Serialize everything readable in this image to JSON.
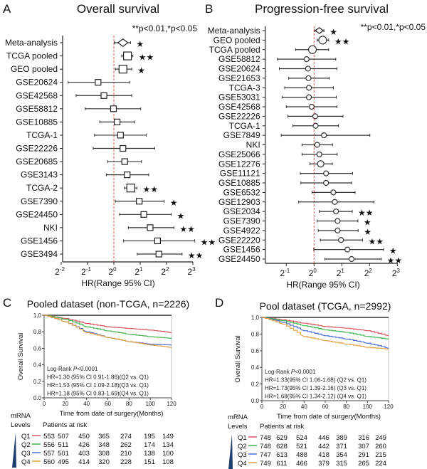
{
  "chart_data": [
    {
      "type": "forest",
      "panel": "A",
      "title": "Overall survival",
      "xlabel": "HR(Range 95% CI)",
      "x_scale": "log2",
      "x_ticks_log2": [
        -2,
        -1,
        0,
        1,
        2,
        3
      ],
      "reference_line_hr": 1,
      "annotation": "**p<0.01,*p<0.05",
      "rows": [
        {
          "label": "Meta-analysis",
          "hr": 1.27,
          "lo": 1.01,
          "hi": 1.55,
          "sig": "*",
          "marker": "diamond"
        },
        {
          "label": "TCGA pooled",
          "hr": 1.43,
          "lo": 1.23,
          "hi": 1.65,
          "sig": "**",
          "marker": "square"
        },
        {
          "label": "GEO pooled",
          "hr": 1.27,
          "lo": 1.04,
          "hi": 1.6,
          "sig": "*",
          "marker": "square"
        },
        {
          "label": "GSE20624",
          "hr": 0.66,
          "lo": 0.3,
          "hi": 1.51,
          "sig": "",
          "marker": "square"
        },
        {
          "label": "GSE42568",
          "hr": 0.77,
          "lo": 0.37,
          "hi": 1.6,
          "sig": "",
          "marker": "square"
        },
        {
          "label": "GSE58812",
          "hr": 0.99,
          "lo": 0.47,
          "hi": 2.03,
          "sig": "",
          "marker": "square"
        },
        {
          "label": "GSE10885",
          "hr": 1.09,
          "lo": 0.69,
          "hi": 1.73,
          "sig": "",
          "marker": "square"
        },
        {
          "label": "TCGA-1",
          "hr": 1.19,
          "lo": 0.6,
          "hi": 2.35,
          "sig": "",
          "marker": "square"
        },
        {
          "label": "GSE22226",
          "hr": 1.27,
          "lo": 0.58,
          "hi": 2.93,
          "sig": "",
          "marker": "square"
        },
        {
          "label": "GSE20685",
          "hr": 1.33,
          "lo": 0.85,
          "hi": 2.07,
          "sig": "",
          "marker": "square"
        },
        {
          "label": "GSE3143",
          "hr": 1.42,
          "lo": 0.82,
          "hi": 2.5,
          "sig": "",
          "marker": "square"
        },
        {
          "label": "TCGA-2",
          "hr": 1.56,
          "lo": 1.32,
          "hi": 1.84,
          "sig": "**",
          "marker": "square"
        },
        {
          "label": "GSE7390",
          "hr": 1.95,
          "lo": 1.04,
          "hi": 3.76,
          "sig": "*",
          "marker": "square"
        },
        {
          "label": "GSE24450",
          "hr": 2.2,
          "lo": 1.16,
          "hi": 4.53,
          "sig": "*",
          "marker": "square"
        },
        {
          "label": "NKI",
          "hr": 2.6,
          "lo": 1.46,
          "hi": 4.86,
          "sig": "**",
          "marker": "square"
        },
        {
          "label": "GSE1456",
          "hr": 3.16,
          "lo": 1.29,
          "hi": 8.4,
          "sig": "**",
          "marker": "square"
        },
        {
          "label": "GSE3494",
          "hr": 3.27,
          "lo": 1.85,
          "hi": 6.02,
          "sig": "**",
          "marker": "square"
        }
      ]
    },
    {
      "type": "forest",
      "panel": "B",
      "title": "Progression-free survival",
      "xlabel": "HR(Range 95% CI)",
      "x_scale": "log2",
      "x_ticks_log2": [
        -1,
        0,
        1,
        2,
        3
      ],
      "reference_line_hr": 1,
      "annotation": "**p<0.01,*p<0.05",
      "rows": [
        {
          "label": "Meta-analysis",
          "hr": 1.14,
          "lo": 1.02,
          "hi": 1.28,
          "sig": "*",
          "marker": "diamond"
        },
        {
          "label": "GEO pooled",
          "hr": 1.24,
          "lo": 1.08,
          "hi": 1.44,
          "sig": "**",
          "marker": "circle"
        },
        {
          "label": "TCGA pooled",
          "hr": 0.96,
          "lo": 0.63,
          "hi": 1.44,
          "sig": "",
          "marker": "circle"
        },
        {
          "label": "GSE58812",
          "hr": 0.83,
          "lo": 0.4,
          "hi": 1.72,
          "sig": "",
          "marker": "circle"
        },
        {
          "label": "GSE20624",
          "hr": 0.86,
          "lo": 0.42,
          "hi": 1.77,
          "sig": "",
          "marker": "circle"
        },
        {
          "label": "GSE21653",
          "hr": 0.87,
          "lo": 0.53,
          "hi": 1.46,
          "sig": "",
          "marker": "circle"
        },
        {
          "label": "TCGA-3",
          "hr": 0.88,
          "lo": 0.48,
          "hi": 1.62,
          "sig": "",
          "marker": "circle"
        },
        {
          "label": "GSE53031",
          "hr": 0.88,
          "lo": 0.45,
          "hi": 1.74,
          "sig": "",
          "marker": "circle"
        },
        {
          "label": "GSE42568",
          "hr": 0.94,
          "lo": 0.5,
          "hi": 1.77,
          "sig": "",
          "marker": "circle"
        },
        {
          "label": "GSE22226",
          "hr": 1.03,
          "lo": 0.52,
          "hi": 2.06,
          "sig": "",
          "marker": "circle"
        },
        {
          "label": "TCGA-1",
          "hr": 1.04,
          "lo": 0.59,
          "hi": 1.84,
          "sig": "",
          "marker": "circle"
        },
        {
          "label": "GSE7849",
          "hr": 1.28,
          "lo": 0.44,
          "hi": 4.03,
          "sig": "",
          "marker": "circle"
        },
        {
          "label": "NKI",
          "hr": 1.08,
          "lo": 0.74,
          "hi": 1.59,
          "sig": "",
          "marker": "circle"
        },
        {
          "label": "GSE25066",
          "hr": 1.14,
          "lo": 0.74,
          "hi": 1.78,
          "sig": "",
          "marker": "circle"
        },
        {
          "label": "GSE12276",
          "hr": 1.18,
          "lo": 0.9,
          "hi": 1.58,
          "sig": "",
          "marker": "circle"
        },
        {
          "label": "GSE11121",
          "hr": 1.35,
          "lo": 0.71,
          "hi": 2.62,
          "sig": "",
          "marker": "circle"
        },
        {
          "label": "GSE10885",
          "hr": 1.35,
          "lo": 0.72,
          "hi": 2.55,
          "sig": "",
          "marker": "circle"
        },
        {
          "label": "GSE6532",
          "hr": 1.62,
          "lo": 0.95,
          "hi": 2.79,
          "sig": "",
          "marker": "circle"
        },
        {
          "label": "GSE12903",
          "hr": 1.68,
          "lo": 0.68,
          "hi": 4.47,
          "sig": "",
          "marker": "circle"
        },
        {
          "label": "GSE2034",
          "hr": 1.73,
          "lo": 1.14,
          "hi": 2.6,
          "sig": "**",
          "marker": "circle"
        },
        {
          "label": "GSE7390",
          "hr": 1.8,
          "lo": 1.08,
          "hi": 2.99,
          "sig": "*",
          "marker": "circle"
        },
        {
          "label": "GSE4922",
          "hr": 1.8,
          "lo": 1.11,
          "hi": 3.01,
          "sig": "*",
          "marker": "circle"
        },
        {
          "label": "GSE22220",
          "hr": 1.96,
          "lo": 1.17,
          "hi": 3.36,
          "sig": "**",
          "marker": "circle"
        },
        {
          "label": "GSE1456",
          "hr": 2.3,
          "lo": 0.99,
          "hi": 5.66,
          "sig": "*",
          "marker": "circle"
        },
        {
          "label": "GSE24450",
          "hr": 2.55,
          "lo": 1.31,
          "hi": 5.35,
          "sig": "**",
          "marker": "circle"
        }
      ]
    },
    {
      "type": "line",
      "panel": "C",
      "title": "Pooled dataset (non-TCGA, n=2226)",
      "xlabel": "Time from date of surgery(Months)",
      "ylabel": "Overall Survival",
      "xlim": [
        0,
        120
      ],
      "ylim": [
        0,
        1
      ],
      "x_ticks": [
        0,
        20,
        40,
        60,
        80,
        100,
        120
      ],
      "y_ticks": [
        "0.0",
        "0.2",
        "0.4",
        "0.6",
        "0.8",
        "1.0"
      ],
      "annotations": [
        "Log-Rank P<0.0001",
        "HR=1.30 (95% CI 0.91-1.86)(Q2 vs. Q1)",
        "HR=1.53 (95% CI 1.09-2.18)(Q3 vs. Q1)",
        "HR=1.18 (95% CI 0.83-1.69)(Q4 vs. Q1)"
      ],
      "x": [
        0,
        20,
        40,
        60,
        80,
        100,
        120
      ],
      "series": [
        {
          "name": "Q1",
          "color": "#d9555c",
          "values": [
            1.0,
            0.96,
            0.9,
            0.86,
            0.84,
            0.82,
            0.79
          ]
        },
        {
          "name": "Q2",
          "color": "#3fb54e",
          "values": [
            1.0,
            0.95,
            0.86,
            0.81,
            0.77,
            0.74,
            0.72
          ]
        },
        {
          "name": "Q3",
          "color": "#4a6ed8",
          "values": [
            1.0,
            0.92,
            0.8,
            0.73,
            0.68,
            0.65,
            0.64
          ]
        },
        {
          "name": "Q4",
          "color": "#e3a141",
          "values": [
            1.0,
            0.92,
            0.79,
            0.73,
            0.68,
            0.64,
            0.61
          ]
        }
      ],
      "risk_table": {
        "group_header": [
          "mRNA",
          "Levels"
        ],
        "header": "Patients at risk",
        "rows": [
          {
            "name": "Q1",
            "counts": [
              553,
              507,
              450,
              365,
              274,
              195,
              149
            ]
          },
          {
            "name": "Q2",
            "counts": [
              556,
              511,
              426,
              348,
              262,
              174,
              134
            ]
          },
          {
            "name": "Q3",
            "counts": [
              557,
              501,
              403,
              308,
              210,
              138,
              100
            ]
          },
          {
            "name": "Q4",
            "counts": [
              560,
              495,
              414,
              320,
              228,
              151,
              108
            ]
          }
        ]
      }
    },
    {
      "type": "line",
      "panel": "D",
      "title": "Pool dataset (TCGA, n=2992)",
      "xlabel": "Time from date of surgery(Months)",
      "ylabel": "Overall Survival",
      "xlim": [
        0,
        120
      ],
      "ylim": [
        0,
        1
      ],
      "x_ticks": [
        0,
        20,
        40,
        60,
        80,
        100,
        120
      ],
      "y_ticks": [
        "0.0",
        "0.2",
        "0.4",
        "0.6",
        "0.8",
        "1.0"
      ],
      "annotations": [
        "Log-Rank P<0.0001",
        "HR=1.33(95% CI 1.06-1.68) (Q2 vs. Q1)",
        "HR=1.73(95% CI 1.39-2.16) (Q3 vs. Q1)",
        "HR=1.68(95% CI 1.34-2.12) (Q4 vs. Q1)"
      ],
      "x": [
        0,
        20,
        40,
        60,
        80,
        100,
        120
      ],
      "series": [
        {
          "name": "Q1",
          "color": "#d9555c",
          "values": [
            1.0,
            0.97,
            0.93,
            0.89,
            0.87,
            0.84,
            0.78
          ]
        },
        {
          "name": "Q2",
          "color": "#3fb54e",
          "values": [
            1.0,
            0.96,
            0.9,
            0.85,
            0.82,
            0.77,
            0.74
          ]
        },
        {
          "name": "Q3",
          "color": "#4a6ed8",
          "values": [
            1.0,
            0.94,
            0.84,
            0.78,
            0.74,
            0.69,
            0.63
          ]
        },
        {
          "name": "Q4",
          "color": "#e3a141",
          "values": [
            1.0,
            0.92,
            0.77,
            0.72,
            0.68,
            0.64,
            0.62
          ]
        }
      ],
      "risk_table": {
        "group_header": [
          "mRNA",
          "Levels"
        ],
        "header": "Patients at risk",
        "rows": [
          {
            "name": "Q1",
            "counts": [
              748,
              629,
              524,
              446,
              389,
              316,
              249
            ]
          },
          {
            "name": "Q2",
            "counts": [
              748,
              628,
              521,
              442,
              371,
              307,
              260
            ]
          },
          {
            "name": "Q3",
            "counts": [
              747,
              613,
              488,
              418,
              354,
              291,
              215
            ]
          },
          {
            "name": "Q4",
            "counts": [
              749,
              611,
              466,
              379,
              315,
              265,
              224
            ]
          }
        ]
      }
    }
  ],
  "reference_line_color": "#e05555",
  "level_wedge_color": "#1f3f6e"
}
